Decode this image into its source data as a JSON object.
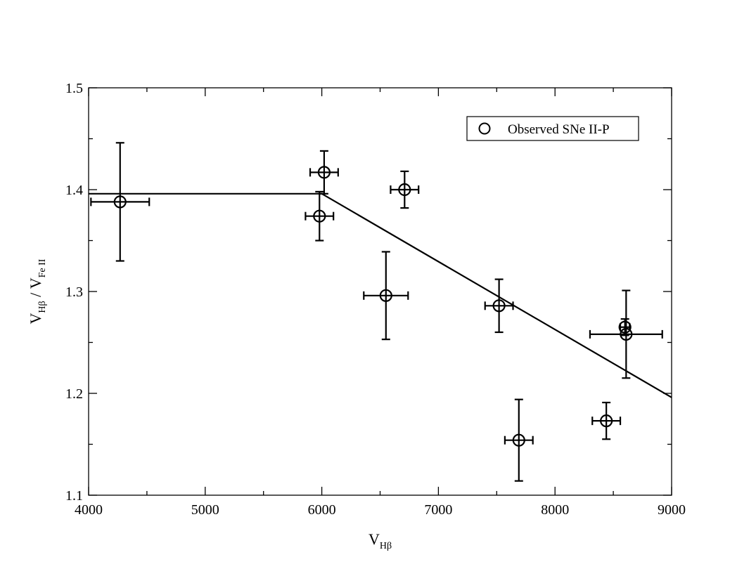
{
  "chart_data": {
    "type": "scatter",
    "xlim": [
      4000,
      9000
    ],
    "ylim": [
      1.1,
      1.5
    ],
    "x_major_ticks": [
      4000,
      5000,
      6000,
      7000,
      8000,
      9000
    ],
    "x_minor_ticks": [
      4500,
      5500,
      6500,
      7500,
      8500
    ],
    "y_major_ticks": [
      1.1,
      1.2,
      1.3,
      1.4,
      1.5
    ],
    "y_minor_ticks": [
      1.15,
      1.25,
      1.35,
      1.45
    ],
    "x_tick_labels": [
      "4000",
      "5000",
      "6000",
      "7000",
      "8000",
      "9000"
    ],
    "y_tick_labels": [
      "1.1",
      "1.2",
      "1.3",
      "1.4",
      "1.5"
    ],
    "xlabel": {
      "main": "V",
      "sub": "Hβ"
    },
    "ylabel": {
      "main1": "V",
      "sub1": "Hβ",
      "sep": " / V",
      "sub2": "Fe II"
    },
    "grid": false,
    "legend_position": "top-right",
    "series": [
      {
        "name": "Observed SNe II-P",
        "marker": "open-circle",
        "points": [
          {
            "x": 4270,
            "y": 1.388,
            "xerr": 250,
            "yerr": 0.058
          },
          {
            "x": 6020,
            "y": 1.417,
            "xerr": 120,
            "yerr": 0.021
          },
          {
            "x": 5980,
            "y": 1.374,
            "xerr": 120,
            "yerr": 0.024
          },
          {
            "x": 6710,
            "y": 1.4,
            "xerr": 120,
            "yerr": 0.018
          },
          {
            "x": 6550,
            "y": 1.296,
            "xerr": 190,
            "yerr": 0.043
          },
          {
            "x": 7520,
            "y": 1.286,
            "xerr": 120,
            "yerr": 0.026
          },
          {
            "x": 7690,
            "y": 1.154,
            "xerr": 120,
            "yerr": 0.04
          },
          {
            "x": 8440,
            "y": 1.173,
            "xerr": 120,
            "yerr": 0.018
          },
          {
            "x": 8600,
            "y": 1.265,
            "xerr": 40,
            "yerr": 0.008
          },
          {
            "x": 8610,
            "y": 1.258,
            "xerr": 310,
            "yerr": 0.043
          }
        ]
      }
    ],
    "fit_line": {
      "points": [
        {
          "x": 4000,
          "y": 1.396
        },
        {
          "x": 6000,
          "y": 1.396
        },
        {
          "x": 9000,
          "y": 1.196
        }
      ]
    }
  }
}
